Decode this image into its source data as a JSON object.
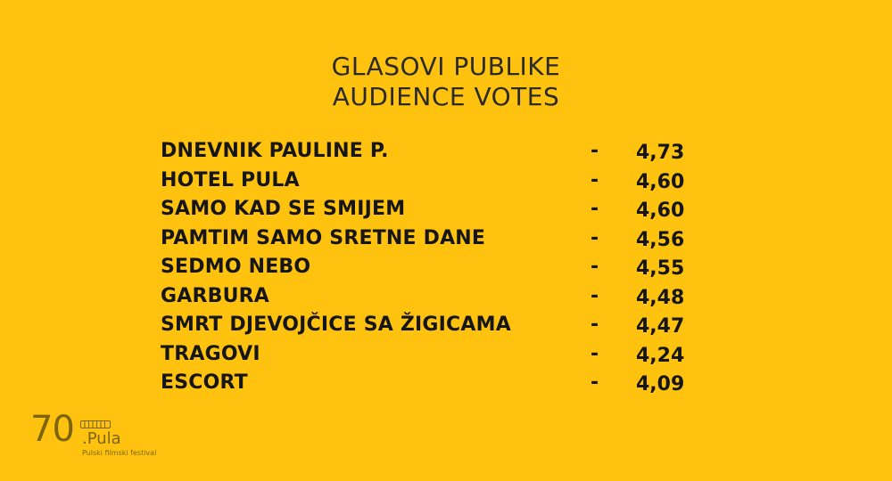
{
  "header": {
    "title_line1": "GLASOVI PUBLIKE",
    "title_line2": "AUDIENCE VOTES"
  },
  "votes": [
    {
      "film": "DNEVNIK PAULINE P.",
      "dash": "-",
      "score": "4,73"
    },
    {
      "film": "HOTEL PULA",
      "dash": "-",
      "score": "4,60"
    },
    {
      "film": "SAMO KAD SE SMIJEM",
      "dash": "-",
      "score": "4,60"
    },
    {
      "film": "PAMTIM SAMO SRETNE DANE",
      "dash": "-",
      "score": "4,56"
    },
    {
      "film": "SEDMO NEBO",
      "dash": "-",
      "score": "4,55"
    },
    {
      "film": "GARBURA",
      "dash": "-",
      "score": "4,48"
    },
    {
      "film": "SMRT DJEVOJČICE SA ŽIGICAMA",
      "dash": "-",
      "score": "4,47"
    },
    {
      "film": "TRAGOVI",
      "dash": "-",
      "score": "4,24"
    },
    {
      "film": "ESCORT",
      "dash": "-",
      "score": "4,09"
    }
  ],
  "logo": {
    "number": "70",
    "word": ".Pula",
    "subtitle": "Pulski filmski festival"
  },
  "colors": {
    "background": "#FFC20E",
    "text": "#161616",
    "logo": "#7D650F"
  }
}
